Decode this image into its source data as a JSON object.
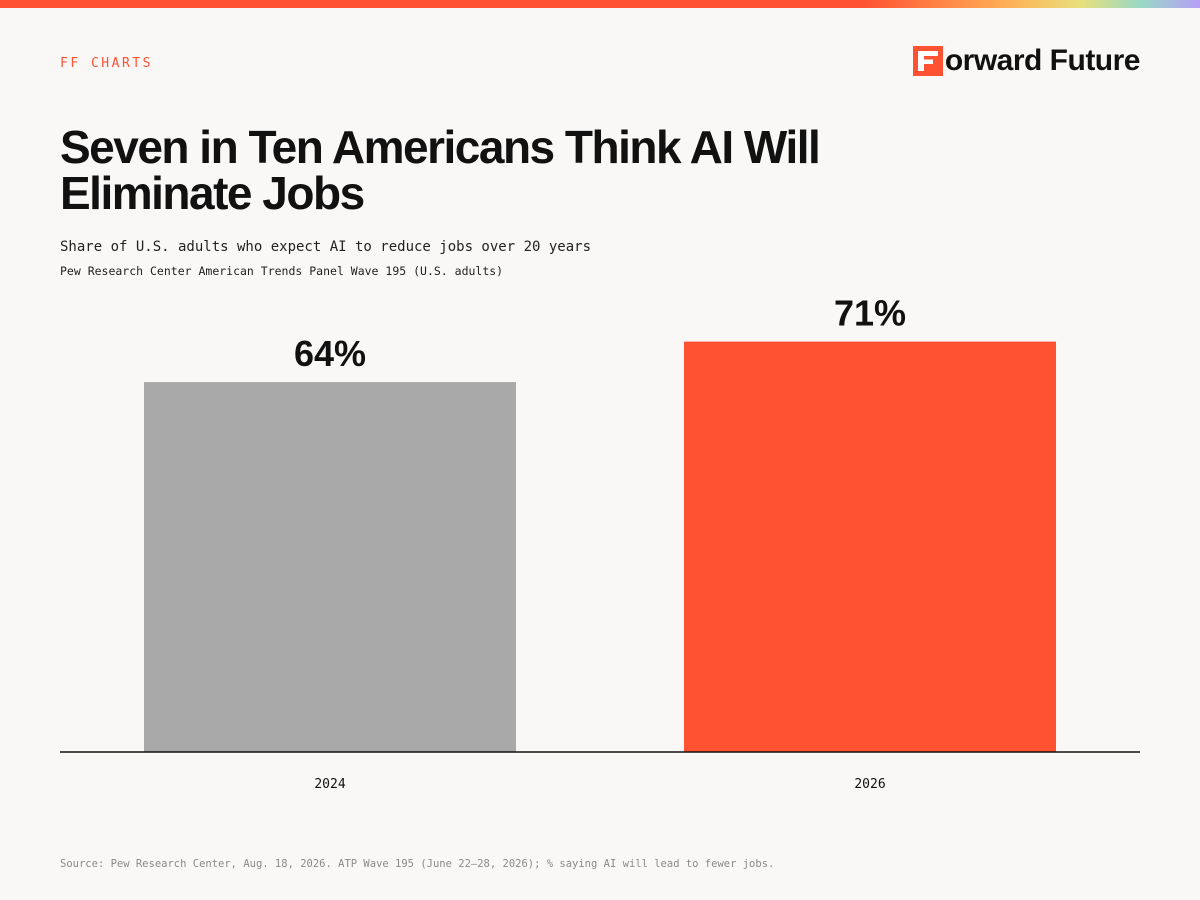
{
  "header": {
    "brand_tag": "FF CHARTS",
    "logo_text": "orward Future",
    "logo_icon": "forward-future-f-mark"
  },
  "colors": {
    "accent": "#ff5233",
    "bar_2024": "#aaa9a9",
    "bar_2026": "#ff5233",
    "background": "#f9f8f6",
    "text": "#111111"
  },
  "chart_data": {
    "type": "bar",
    "title": "Seven in Ten Americans Think AI Will Eliminate Jobs",
    "subtitle": "Share of U.S. adults who expect AI to reduce jobs over 20 years",
    "source_line": "Pew Research Center American Trends Panel Wave 195 (U.S. adults)",
    "categories": [
      "2024",
      "2026"
    ],
    "values": [
      64,
      71
    ],
    "value_labels": [
      "64%",
      "71%"
    ],
    "ylim": [
      0,
      100
    ],
    "grid": false,
    "legend": "none"
  },
  "footer": {
    "source": "Source: Pew Research Center, Aug. 18, 2026. ATP Wave 195 (June 22–28, 2026); % saying AI will lead to fewer jobs."
  }
}
